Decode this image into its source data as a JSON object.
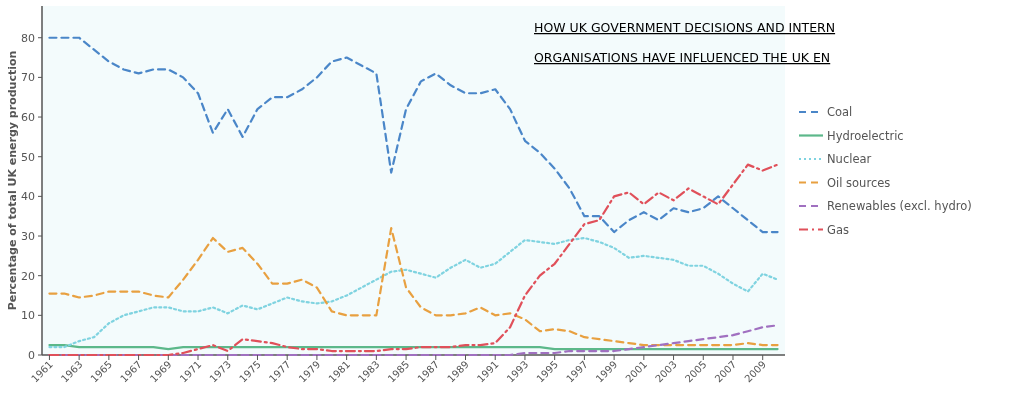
{
  "chart_data": {
    "type": "line",
    "title": "HOW UK GOVERNMENT DECISIONS AND INTERN\nORGANISATIONS HAVE INFLUENCED THE UK EN",
    "ylabel": "Percentage of total UK energy production",
    "x": [
      1961,
      1962,
      1963,
      1964,
      1965,
      1966,
      1967,
      1968,
      1969,
      1970,
      1971,
      1972,
      1973,
      1974,
      1975,
      1976,
      1977,
      1978,
      1979,
      1980,
      1981,
      1982,
      1983,
      1984,
      1985,
      1986,
      1987,
      1988,
      1989,
      1990,
      1991,
      1992,
      1993,
      1994,
      1995,
      1996,
      1997,
      1998,
      1999,
      2000,
      2001,
      2002,
      2003,
      2004,
      2005,
      2006,
      2007,
      2008,
      2009,
      2010
    ],
    "xlim": [
      1960.5,
      2010.5
    ],
    "xticks": [
      1961,
      1963,
      1965,
      1967,
      1969,
      1971,
      1973,
      1975,
      1977,
      1979,
      1981,
      1983,
      1985,
      1987,
      1989,
      1991,
      1993,
      1995,
      1997,
      1999,
      2001,
      2003,
      2005,
      2007,
      2009
    ],
    "ylim": [
      0,
      88
    ],
    "yticks": [
      0,
      10,
      20,
      30,
      40,
      50,
      60,
      70,
      80
    ],
    "grid": false,
    "legend": "right",
    "series": [
      {
        "name": "Coal",
        "color": "#4a86c8",
        "line_style": "dashed",
        "values": [
          80,
          80,
          80,
          77,
          74,
          72,
          71,
          72,
          72,
          70,
          66,
          56,
          62,
          55,
          62,
          65,
          65,
          67,
          70,
          74,
          75,
          73,
          71,
          46,
          62,
          69,
          71,
          68,
          66,
          66,
          67,
          62,
          54,
          51,
          47,
          42,
          35,
          35,
          31,
          34,
          36,
          34,
          37,
          36,
          37,
          40,
          37,
          34,
          31,
          31
        ]
      },
      {
        "name": "Hydroelectric",
        "color": "#5cb88a",
        "line_style": "solid",
        "values": [
          2.5,
          2.5,
          2,
          2,
          2,
          2,
          2,
          2,
          1.5,
          2,
          2,
          2,
          2,
          2,
          2,
          2,
          2,
          2,
          2,
          2,
          2,
          2,
          2,
          2,
          2,
          2,
          2,
          2,
          2,
          2,
          2,
          2,
          2,
          2,
          1.5,
          1.5,
          1.5,
          1.5,
          1.5,
          1.5,
          1.5,
          1.5,
          1.5,
          1.5,
          1.5,
          1.5,
          1.5,
          1.5,
          1.5,
          1.5
        ]
      },
      {
        "name": "Nuclear",
        "color": "#7fd3e0",
        "line_style": "dotted",
        "values": [
          2,
          2,
          3.5,
          4.5,
          8,
          10,
          11,
          12,
          12,
          11,
          11,
          12,
          10.5,
          12.5,
          11.5,
          13,
          14.5,
          13.5,
          13,
          13.5,
          15,
          17,
          19,
          21,
          21.5,
          20.5,
          19.5,
          22,
          24,
          22,
          23,
          26,
          29,
          28.5,
          28,
          29,
          29.5,
          28.5,
          27,
          24.5,
          25,
          24.5,
          24,
          22.5,
          22.5,
          20.5,
          18,
          16,
          20.5,
          19
        ]
      },
      {
        "name": "Oil sources",
        "color": "#e8a040",
        "line_style": "dashed",
        "values": [
          15.5,
          15.5,
          14.5,
          15,
          16,
          16,
          16,
          15,
          14.5,
          19,
          24,
          29.5,
          26,
          27,
          23,
          18,
          18,
          19,
          17,
          11,
          10,
          10,
          10,
          32,
          17,
          12,
          10,
          10,
          10.5,
          12,
          10,
          10.5,
          9,
          6,
          6.5,
          6,
          4.5,
          4,
          3.5,
          3,
          2.5,
          2.5,
          2.5,
          2.5,
          2.5,
          2.5,
          2.5,
          3,
          2.5,
          2.5
        ]
      },
      {
        "name": "Renewables (excl. hydro)",
        "color": "#a070c0",
        "line_style": "dashed",
        "values": [
          0,
          0,
          0,
          0,
          0,
          0,
          0,
          0,
          0,
          0,
          0,
          0,
          0,
          0,
          0,
          0,
          0,
          0,
          0,
          0,
          0,
          0,
          0,
          0,
          0,
          0,
          0,
          0,
          0,
          0,
          0,
          0,
          0.5,
          0.5,
          0.5,
          1,
          1,
          1,
          1,
          1.5,
          2,
          2.5,
          3,
          3.5,
          4,
          4.5,
          5,
          6,
          7,
          7.5
        ]
      },
      {
        "name": "Gas",
        "color": "#e0505a",
        "line_style": "dashdot",
        "values": [
          0,
          0,
          0,
          0,
          0,
          0,
          0,
          0,
          0,
          0.5,
          1.5,
          2.5,
          1,
          4,
          3.5,
          3,
          2,
          1.5,
          1.5,
          1,
          1,
          1,
          1,
          1.5,
          1.5,
          2,
          2,
          2,
          2.5,
          2.5,
          3,
          7,
          15,
          20,
          23,
          28,
          33,
          34,
          40,
          41,
          38,
          41,
          39,
          42,
          40,
          38,
          43,
          48,
          46.5,
          48
        ]
      }
    ]
  }
}
